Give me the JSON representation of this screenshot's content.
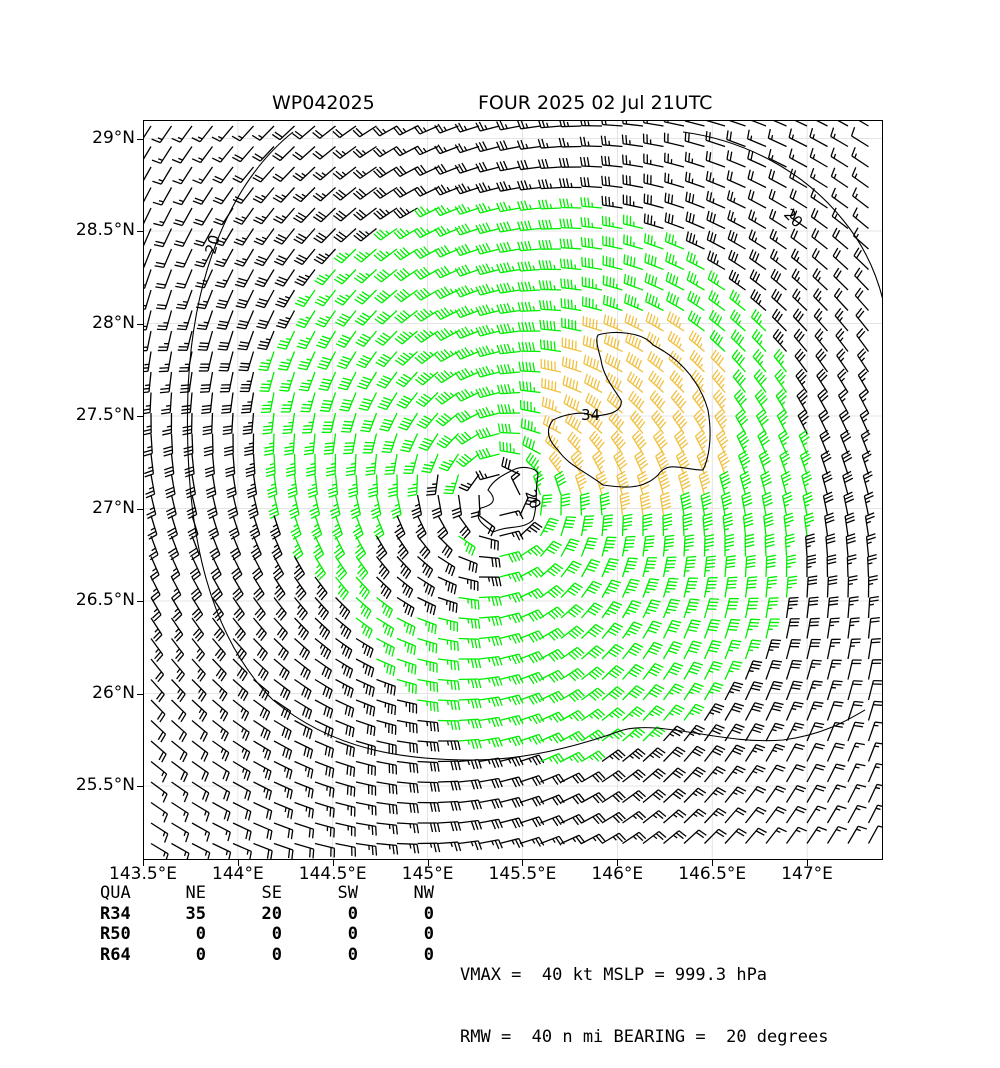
{
  "title": {
    "storm_id": "WP042025",
    "storm_info": "FOUR 2025 02 Jul 21UTC"
  },
  "map": {
    "lon_range": [
      143.5,
      147.4
    ],
    "lat_range": [
      25.1,
      29.1
    ],
    "x_ticks": [
      "143.5°E",
      "144°E",
      "144.5°E",
      "145°E",
      "145.5°E",
      "146°E",
      "146.5°E",
      "147°E"
    ],
    "x_tick_values": [
      143.5,
      144.0,
      144.5,
      145.0,
      145.5,
      146.0,
      146.5,
      147.0
    ],
    "y_ticks": [
      "29°N",
      "28.5°N",
      "28°N",
      "27.5°N",
      "27°N",
      "26.5°N",
      "26°N",
      "25.5°N"
    ],
    "y_tick_values": [
      29.0,
      28.5,
      28.0,
      27.5,
      27.0,
      26.5,
      26.0,
      25.5
    ],
    "center": {
      "lon": 145.38,
      "lat": 27.05
    },
    "contour_labels": [
      "20",
      "20",
      "34",
      "20"
    ],
    "colors": {
      "below_34kt": "#000000",
      "34_to_50kt": "#00ee00",
      "50_plus_kt": "#f0c040",
      "contour": "#000000",
      "grid": "#dddddd"
    }
  },
  "wind_radii_table": {
    "header": [
      "QUA",
      "NE",
      "SE",
      "SW",
      "NW"
    ],
    "rows": [
      {
        "label": "R34",
        "values": [
          "35",
          "20",
          "0",
          "0"
        ]
      },
      {
        "label": "R50",
        "values": [
          "0",
          "0",
          "0",
          "0"
        ]
      },
      {
        "label": "R64",
        "values": [
          "0",
          "0",
          "0",
          "0"
        ]
      }
    ]
  },
  "stats": {
    "line1": "VMAX =  40 kt MSLP = 999.3 hPa",
    "line2": "RMW =  40 n mi BEARING =  20 degrees"
  }
}
